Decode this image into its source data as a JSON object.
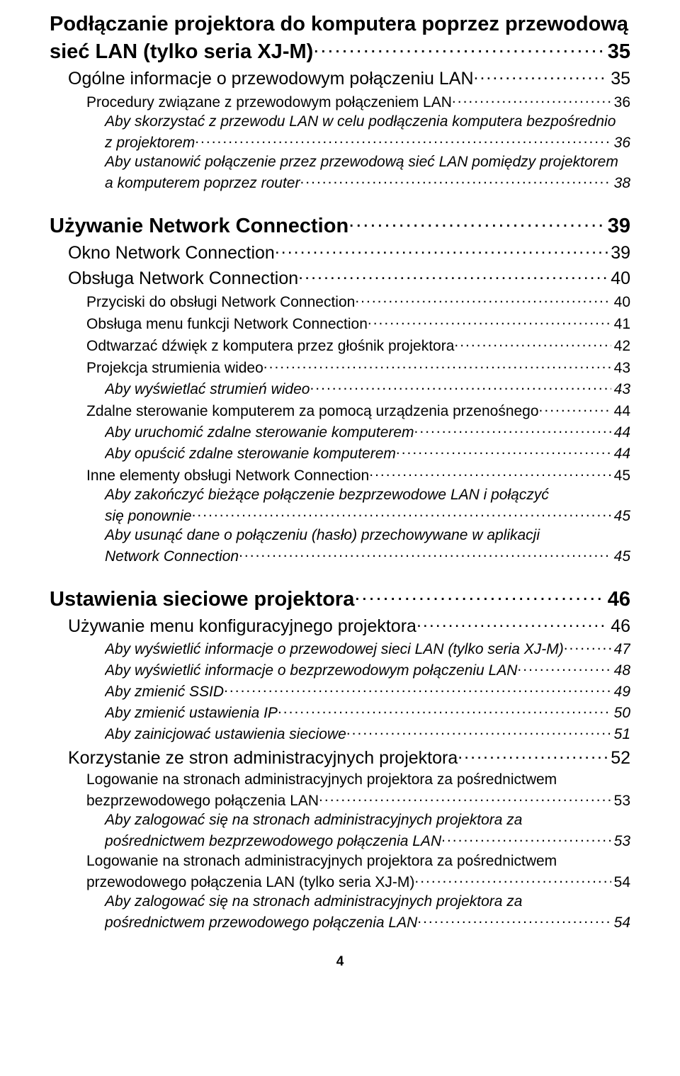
{
  "toc": {
    "sec1_line1": "Podłączanie projektora do komputera poprzez przewodową",
    "sec1_line2": "sieć LAN (tylko seria XJ-M)",
    "sec1_page": "35",
    "sec1_items": [
      {
        "level": "l2",
        "label": "Ogólne informacje o przewodowym połączeniu LAN",
        "page": "35"
      },
      {
        "level": "l3",
        "label": "Procedury związane z przewodowym połączeniem LAN",
        "page": "36"
      },
      {
        "level": "l4",
        "wrap": true,
        "line1": "Aby skorzystać z przewodu LAN w celu podłączenia komputera bezpośrednio",
        "line2": "z projektorem",
        "page": "36"
      },
      {
        "level": "l4",
        "wrap": true,
        "line1": "Aby ustanowić połączenie przez przewodową sieć LAN pomiędzy projektorem",
        "line2": "a komputerem poprzez router",
        "page": "38"
      }
    ],
    "sec2_title": "Używanie Network Connection",
    "sec2_page": "39",
    "sec2_items": [
      {
        "level": "l2",
        "label": "Okno Network Connection",
        "page": "39"
      },
      {
        "level": "l2",
        "label": "Obsługa Network Connection",
        "page": "40"
      },
      {
        "level": "l3",
        "label": "Przyciski do obsługi Network Connection",
        "page": "40"
      },
      {
        "level": "l3",
        "label": "Obsługa menu funkcji Network Connection",
        "page": "41"
      },
      {
        "level": "l3",
        "label": "Odtwarzać dźwięk z komputera przez głośnik projektora",
        "page": "42"
      },
      {
        "level": "l3",
        "label": "Projekcja strumienia wideo",
        "page": "43"
      },
      {
        "level": "l4",
        "label": "Aby wyświetlać strumień wideo",
        "page": "43"
      },
      {
        "level": "l3",
        "label": "Zdalne sterowanie komputerem za pomocą urządzenia przenośnego",
        "page": "44"
      },
      {
        "level": "l4",
        "label": "Aby uruchomić zdalne sterowanie komputerem",
        "page": "44"
      },
      {
        "level": "l4",
        "label": "Aby opuścić zdalne sterowanie komputerem",
        "page": "44"
      },
      {
        "level": "l3",
        "label": "Inne elementy obsługi Network Connection",
        "page": "45"
      },
      {
        "level": "l4",
        "wrap": true,
        "line1": "Aby zakończyć bieżące połączenie bezprzewodowe LAN i połączyć",
        "line2": "się ponownie",
        "page": "45"
      },
      {
        "level": "l4",
        "wrap": true,
        "line1": "Aby usunąć dane o połączeniu (hasło) przechowywane w aplikacji",
        "line2": "Network Connection",
        "page": "45"
      }
    ],
    "sec3_title": "Ustawienia sieciowe projektora",
    "sec3_page": "46",
    "sec3_items": [
      {
        "level": "l2",
        "label": "Używanie menu konfiguracyjnego projektora",
        "page": "46"
      },
      {
        "level": "l4",
        "label": "Aby wyświetlić informacje o przewodowej sieci LAN (tylko seria XJ-M)",
        "page": "47"
      },
      {
        "level": "l4",
        "label": "Aby wyświetlić informacje o bezprzewodowym połączeniu LAN",
        "page": "48"
      },
      {
        "level": "l4",
        "label": "Aby zmienić SSID",
        "page": "49"
      },
      {
        "level": "l4",
        "label": "Aby zmienić ustawienia IP",
        "page": "50"
      },
      {
        "level": "l4",
        "label": "Aby zainicjować ustawienia sieciowe",
        "page": "51"
      },
      {
        "level": "l2",
        "label": "Korzystanie ze stron administracyjnych projektora",
        "page": "52"
      },
      {
        "level": "l3",
        "wrap": true,
        "line1": "Logowanie na stronach administracyjnych projektora za pośrednictwem",
        "line2": "bezprzewodowego połączenia LAN",
        "page": "53"
      },
      {
        "level": "l4",
        "wrap": true,
        "line1": "Aby zalogować się na stronach administracyjnych projektora za",
        "line2": "pośrednictwem bezprzewodowego połączenia LAN",
        "page": "53"
      },
      {
        "level": "l3",
        "wrap": true,
        "line1": "Logowanie na stronach administracyjnych projektora za pośrednictwem",
        "line2": "przewodowego połączenia LAN (tylko seria XJ-M)",
        "page": "54"
      },
      {
        "level": "l4",
        "wrap": true,
        "line1": "Aby zalogować się na stronach administracyjnych projektora za",
        "line2": "pośrednictwem przewodowego połączenia LAN",
        "page": "54"
      }
    ]
  },
  "page_number": "4",
  "colors": {
    "text": "#000000",
    "background": "#ffffff"
  },
  "typography": {
    "font_family": "Arial, Helvetica, sans-serif"
  }
}
